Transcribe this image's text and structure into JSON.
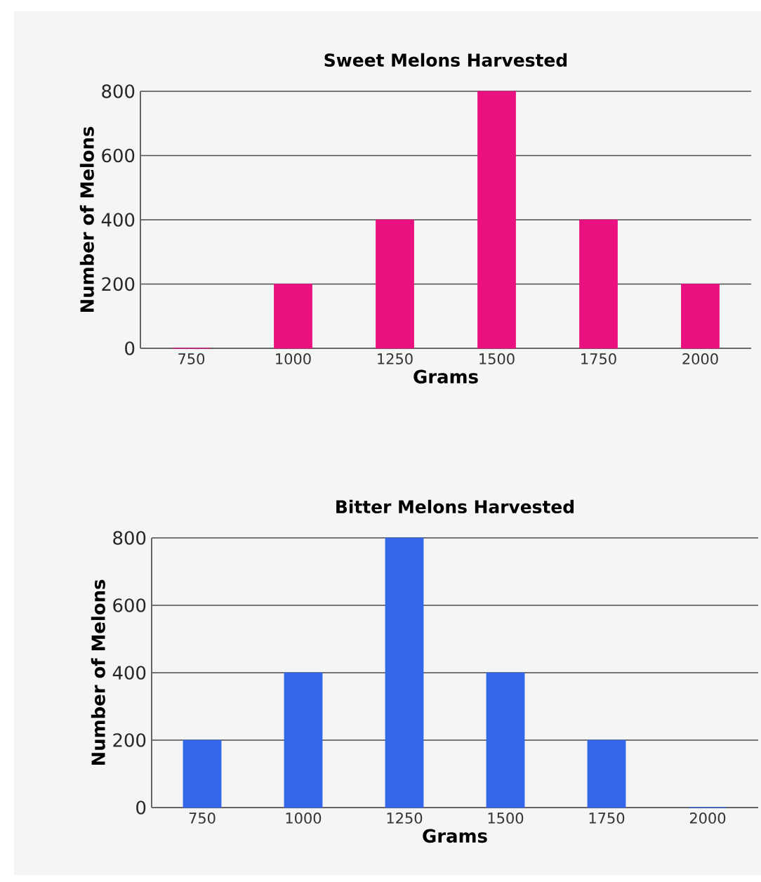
{
  "chart_data": [
    {
      "type": "bar",
      "title": "Sweet Melons Harvested",
      "xlabel": "Grams",
      "ylabel": "Number of Melons",
      "categories": [
        "750",
        "1000",
        "1250",
        "1500",
        "1750",
        "2000"
      ],
      "values": [
        0,
        200,
        400,
        800,
        400,
        200
      ],
      "color": "#e8117f",
      "ylim": [
        0,
        800
      ],
      "yticks": [
        0,
        200,
        400,
        600,
        800
      ],
      "grid": "y"
    },
    {
      "type": "bar",
      "title": "Bitter Melons Harvested",
      "xlabel": "Grams",
      "ylabel": "Number of Melons",
      "categories": [
        "750",
        "1000",
        "1250",
        "1500",
        "1750",
        "2000"
      ],
      "values": [
        200,
        400,
        800,
        400,
        200,
        0
      ],
      "color": "#3366e8",
      "ylim": [
        0,
        800
      ],
      "yticks": [
        0,
        200,
        400,
        600,
        800
      ],
      "grid": "y"
    }
  ]
}
